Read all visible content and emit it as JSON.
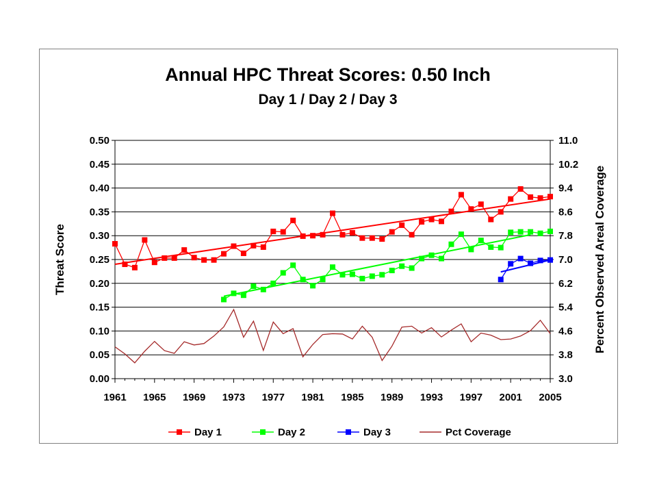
{
  "chart_data": {
    "type": "line",
    "title": "Annual HPC Threat Scores:  0.50 Inch",
    "subtitle": "Day 1 / Day 2 / Day 3",
    "ylabel": "Threat Score",
    "y2label": "Percent Observed Areal Coverage",
    "xlabel": "",
    "xlim": [
      1961,
      2005
    ],
    "ylim": [
      0,
      0.5
    ],
    "y2lim": [
      3.0,
      11.0
    ],
    "x_ticks": [
      "1961",
      "1965",
      "1969",
      "1973",
      "1977",
      "1981",
      "1985",
      "1989",
      "1993",
      "1997",
      "2001",
      "2005"
    ],
    "y_ticks": [
      "0.00",
      "0.05",
      "0.10",
      "0.15",
      "0.20",
      "0.25",
      "0.30",
      "0.35",
      "0.40",
      "0.45",
      "0.50"
    ],
    "y2_ticks": [
      "3.0",
      "3.8",
      "4.6",
      "5.4",
      "6.2",
      "7.0",
      "7.8",
      "8.6",
      "9.4",
      "10.2",
      "11.0"
    ],
    "grid": true,
    "legend_position": "bottom",
    "series": [
      {
        "name": "Day 1",
        "color": "#ff0000",
        "marker": "square",
        "axis": "left",
        "x": [
          1961,
          1962,
          1963,
          1964,
          1965,
          1966,
          1967,
          1968,
          1969,
          1970,
          1971,
          1972,
          1973,
          1974,
          1975,
          1976,
          1977,
          1978,
          1979,
          1980,
          1981,
          1982,
          1983,
          1984,
          1985,
          1986,
          1987,
          1988,
          1989,
          1990,
          1991,
          1992,
          1993,
          1994,
          1995,
          1996,
          1997,
          1998,
          1999,
          2000,
          2001,
          2002,
          2003,
          2004,
          2005
        ],
        "values": [
          0.283,
          0.24,
          0.233,
          0.291,
          0.244,
          0.253,
          0.253,
          0.27,
          0.254,
          0.249,
          0.249,
          0.262,
          0.278,
          0.263,
          0.279,
          0.276,
          0.309,
          0.308,
          0.332,
          0.299,
          0.3,
          0.302,
          0.347,
          0.302,
          0.306,
          0.295,
          0.295,
          0.293,
          0.308,
          0.322,
          0.302,
          0.329,
          0.334,
          0.33,
          0.351,
          0.386,
          0.356,
          0.366,
          0.334,
          0.35,
          0.377,
          0.398,
          0.381,
          0.379,
          0.382
        ],
        "trend": [
          [
            1961,
            0.24
          ],
          [
            2005,
            0.377
          ]
        ]
      },
      {
        "name": "Day 2",
        "color": "#00ff00",
        "marker": "square",
        "axis": "left",
        "x": [
          1972,
          1973,
          1974,
          1975,
          1976,
          1977,
          1978,
          1979,
          1980,
          1981,
          1982,
          1983,
          1984,
          1985,
          1986,
          1987,
          1988,
          1989,
          1990,
          1991,
          1992,
          1993,
          1994,
          1995,
          1996,
          1997,
          1998,
          1999,
          2000,
          2001,
          2002,
          2003,
          2004,
          2005
        ],
        "values": [
          0.166,
          0.179,
          0.175,
          0.194,
          0.187,
          0.2,
          0.222,
          0.238,
          0.208,
          0.195,
          0.208,
          0.234,
          0.218,
          0.219,
          0.21,
          0.215,
          0.218,
          0.227,
          0.236,
          0.232,
          0.252,
          0.259,
          0.252,
          0.282,
          0.303,
          0.271,
          0.29,
          0.276,
          0.275,
          0.307,
          0.308,
          0.308,
          0.305,
          0.309
        ],
        "trend": [
          [
            1972,
            0.173
          ],
          [
            2003,
            0.302
          ]
        ]
      },
      {
        "name": "Day 3",
        "color": "#0000ff",
        "marker": "square",
        "axis": "left",
        "x": [
          2000,
          2001,
          2002,
          2003,
          2004,
          2005
        ],
        "values": [
          0.208,
          0.241,
          0.252,
          0.242,
          0.248,
          0.249
        ],
        "trend": [
          [
            2000,
            0.224
          ],
          [
            2005,
            0.249
          ]
        ]
      },
      {
        "name": "Pct Coverage",
        "color": "#a52a2a",
        "marker": "none",
        "axis": "right",
        "x": [
          1961,
          1962,
          1963,
          1964,
          1965,
          1966,
          1967,
          1968,
          1969,
          1970,
          1971,
          1972,
          1973,
          1974,
          1975,
          1976,
          1977,
          1978,
          1979,
          1980,
          1981,
          1982,
          1983,
          1984,
          1985,
          1986,
          1987,
          1988,
          1989,
          1990,
          1991,
          1992,
          1993,
          1994,
          1995,
          1996,
          1997,
          1998,
          1999,
          2000,
          2001,
          2002,
          2003,
          2004,
          2005
        ],
        "values": [
          4.07,
          3.83,
          3.53,
          3.92,
          4.25,
          3.94,
          3.85,
          4.24,
          4.13,
          4.18,
          4.43,
          4.74,
          5.32,
          4.39,
          4.93,
          3.95,
          4.9,
          4.51,
          4.68,
          3.73,
          4.15,
          4.48,
          4.51,
          4.5,
          4.33,
          4.76,
          4.39,
          3.61,
          4.09,
          4.73,
          4.76,
          4.53,
          4.71,
          4.4,
          4.63,
          4.84,
          4.24,
          4.53,
          4.46,
          4.31,
          4.33,
          4.43,
          4.61,
          4.96,
          4.51
        ]
      }
    ]
  }
}
